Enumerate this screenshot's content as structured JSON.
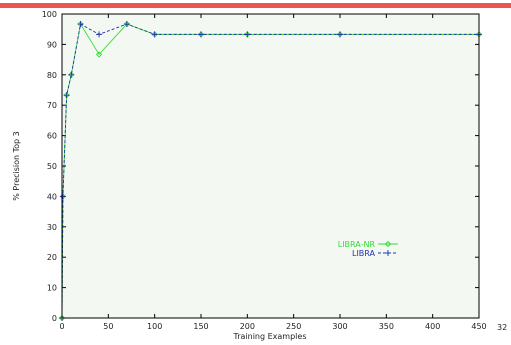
{
  "chart_data": {
    "type": "line",
    "title": "",
    "xlabel": "Training Examples",
    "ylabel": "% Precision Top 3",
    "xlim": [
      0,
      450
    ],
    "ylim": [
      0,
      100
    ],
    "xticks": [
      0,
      50,
      100,
      150,
      200,
      250,
      300,
      350,
      400,
      450
    ],
    "yticks": [
      0,
      10,
      20,
      30,
      40,
      50,
      60,
      70,
      80,
      90,
      100
    ],
    "grid": false,
    "legend_position": "center-right",
    "series": [
      {
        "name": "LIBRA-NR",
        "color": "#33dd33",
        "dash": "solid",
        "marker": "diamond",
        "x": [
          0,
          1,
          5,
          10,
          20,
          40,
          70,
          100,
          150,
          200,
          300,
          450
        ],
        "y": [
          0,
          40,
          73.3,
          80,
          96.7,
          86.7,
          96.7,
          93.3,
          93.3,
          93.3,
          93.3,
          93.3
        ]
      },
      {
        "name": "LIBRA",
        "color": "#2233aa",
        "dash": "dashed",
        "marker": "plus",
        "x": [
          0,
          1,
          5,
          10,
          20,
          40,
          70,
          100,
          150,
          200,
          300,
          450
        ],
        "y": [
          0,
          40,
          73.3,
          80,
          96.7,
          93.3,
          96.7,
          93.3,
          93.3,
          93.3,
          93.3,
          93.3
        ]
      }
    ]
  },
  "page_number": "32"
}
